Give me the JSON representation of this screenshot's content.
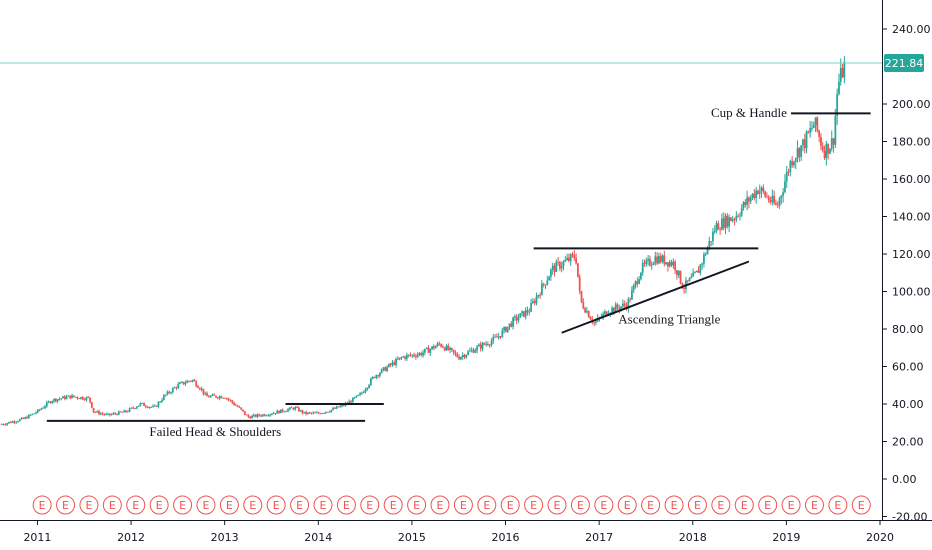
{
  "chart_data": {
    "type": "candlestick",
    "x_axis": {
      "ticks": [
        "2011",
        "2012",
        "2013",
        "2014",
        "2015",
        "2016",
        "2017",
        "2018",
        "2019",
        "2020"
      ],
      "range": [
        2010.6,
        2020.0
      ]
    },
    "y_axis": {
      "ticks": [
        "240.00",
        "200.00",
        "180.00",
        "160.00",
        "140.00",
        "120.00",
        "100.00",
        "80.00",
        "60.00",
        "40.00",
        "20.00",
        "0.00",
        "-20.00"
      ],
      "range": [
        -20,
        244
      ]
    },
    "last_price": {
      "label": "221.84",
      "value": 221.84
    },
    "colors": {
      "up": "#26a69a",
      "down": "#ef5350",
      "earnings": "#ef5350",
      "price_line": "#7fcfc8",
      "price_badge": "#26a69a",
      "pattern_lines": "#131722"
    },
    "price_path": [
      [
        2010.6,
        29
      ],
      [
        2010.85,
        32
      ],
      [
        2011.0,
        36
      ],
      [
        2011.15,
        42
      ],
      [
        2011.35,
        44
      ],
      [
        2011.55,
        43
      ],
      [
        2011.6,
        36
      ],
      [
        2011.75,
        34
      ],
      [
        2011.95,
        36
      ],
      [
        2012.1,
        40
      ],
      [
        2012.25,
        38
      ],
      [
        2012.35,
        44
      ],
      [
        2012.5,
        50
      ],
      [
        2012.65,
        53
      ],
      [
        2012.75,
        48
      ],
      [
        2012.8,
        44
      ],
      [
        2013.0,
        44
      ],
      [
        2013.15,
        38
      ],
      [
        2013.25,
        33
      ],
      [
        2013.5,
        35
      ],
      [
        2013.75,
        38
      ],
      [
        2013.85,
        35
      ],
      [
        2014.0,
        35
      ],
      [
        2014.15,
        37
      ],
      [
        2014.3,
        40
      ],
      [
        2014.45,
        45
      ],
      [
        2014.6,
        55
      ],
      [
        2014.75,
        60
      ],
      [
        2014.9,
        65
      ],
      [
        2015.1,
        67
      ],
      [
        2015.3,
        72
      ],
      [
        2015.5,
        65
      ],
      [
        2015.7,
        70
      ],
      [
        2015.9,
        75
      ],
      [
        2016.1,
        85
      ],
      [
        2016.25,
        90
      ],
      [
        2016.5,
        112
      ],
      [
        2016.75,
        119
      ],
      [
        2016.8,
        95
      ],
      [
        2016.95,
        83
      ],
      [
        2017.1,
        90
      ],
      [
        2017.3,
        93
      ],
      [
        2017.45,
        112
      ],
      [
        2017.6,
        118
      ],
      [
        2017.8,
        115
      ],
      [
        2017.9,
        102
      ],
      [
        2018.05,
        110
      ],
      [
        2018.25,
        135
      ],
      [
        2018.45,
        140
      ],
      [
        2018.7,
        155
      ],
      [
        2018.9,
        145
      ],
      [
        2019.05,
        170
      ],
      [
        2019.2,
        180
      ],
      [
        2019.3,
        190
      ],
      [
        2019.4,
        175
      ],
      [
        2019.5,
        180
      ],
      [
        2019.55,
        210
      ],
      [
        2019.63,
        222
      ]
    ],
    "earnings_markers": {
      "label": "E",
      "dates": [
        2011.05,
        2011.3,
        2011.55,
        2011.8,
        2012.05,
        2012.3,
        2012.55,
        2012.8,
        2013.05,
        2013.3,
        2013.55,
        2013.8,
        2014.05,
        2014.3,
        2014.55,
        2014.8,
        2015.05,
        2015.3,
        2015.55,
        2015.8,
        2016.05,
        2016.3,
        2016.55,
        2016.8,
        2017.05,
        2017.3,
        2017.55,
        2017.8,
        2018.05,
        2018.3,
        2018.55,
        2018.8,
        2019.05,
        2019.3,
        2019.55,
        2019.8
      ]
    },
    "patterns": [
      {
        "label": "Failed Head & Shoulders",
        "lines": [
          [
            [
              2011.1,
              31
            ],
            [
              2014.5,
              31
            ]
          ],
          [
            [
              2013.65,
              40
            ],
            [
              2014.7,
              40
            ]
          ]
        ],
        "label_at": [
          2012.9,
          23
        ]
      },
      {
        "label": "Ascending Triangle",
        "lines": [
          [
            [
              2016.3,
              123
            ],
            [
              2018.7,
              123
            ]
          ],
          [
            [
              2016.6,
              78
            ],
            [
              2018.6,
              116
            ]
          ]
        ],
        "label_at": [
          2017.75,
          83
        ]
      },
      {
        "label": "Cup & Handle",
        "lines": [
          [
            [
              2019.05,
              195
            ],
            [
              2019.9,
              195
            ]
          ]
        ],
        "label_at": [
          2018.6,
          193
        ]
      }
    ],
    "title": "",
    "xlabel": "",
    "ylabel": "",
    "grid": false,
    "legend": "none"
  }
}
